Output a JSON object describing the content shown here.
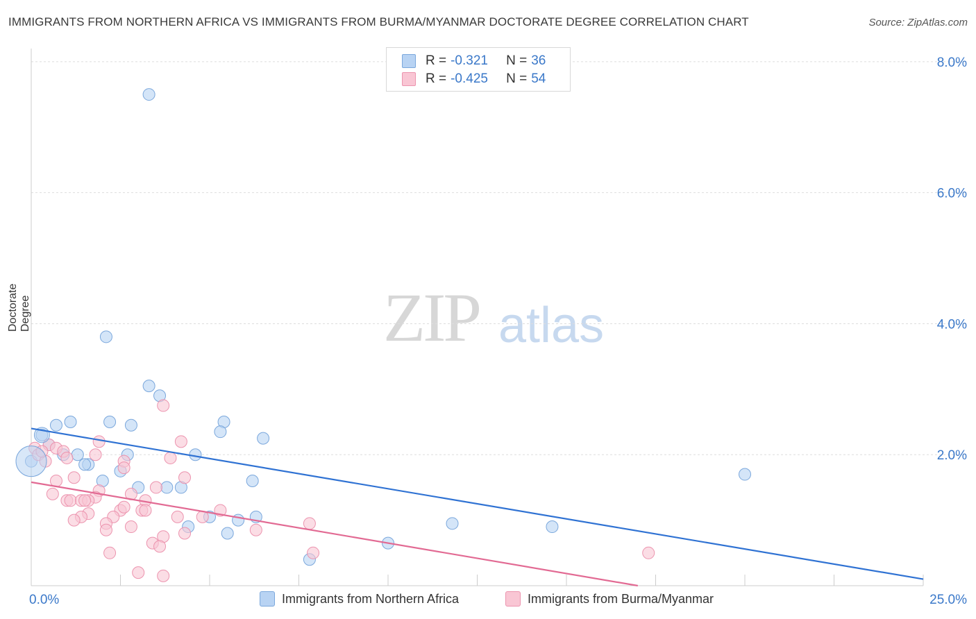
{
  "title": "IMMIGRANTS FROM NORTHERN AFRICA VS IMMIGRANTS FROM BURMA/MYANMAR DOCTORATE DEGREE CORRELATION CHART",
  "source": "Source: ZipAtlas.com",
  "watermark": {
    "zip": "ZIP",
    "atlas": "atlas"
  },
  "legend_top": {
    "rows": [
      {
        "r_label": "R =",
        "r_value": "-0.321",
        "n_label": "N =",
        "n_value": "36",
        "color": "#b8d3f3"
      },
      {
        "r_label": "R =",
        "r_value": "-0.425",
        "n_label": "N =",
        "n_value": "54",
        "color": "#f9c6d4"
      }
    ]
  },
  "chart_data": {
    "type": "scatter",
    "title": "IMMIGRANTS FROM NORTHERN AFRICA VS IMMIGRANTS FROM BURMA/MYANMAR DOCTORATE DEGREE CORRELATION CHART",
    "xlabel": "",
    "ylabel": "Doctorate Degree",
    "xlim": [
      0,
      25
    ],
    "ylim": [
      0,
      8.2
    ],
    "x_ticks": [
      0,
      25
    ],
    "x_tick_labels": [
      "0.0%",
      "25.0%"
    ],
    "y_ticks": [
      2,
      4,
      6,
      8
    ],
    "y_tick_labels": [
      "2.0%",
      "4.0%",
      "6.0%",
      "8.0%"
    ],
    "grid": true,
    "legend": "bottom",
    "series": [
      {
        "name": "Immigrants from Northern Africa",
        "color": "#b8d3f3",
        "stroke": "#7aa7dc",
        "line_color": "#2f72d3",
        "trend": [
          [
            0,
            2.4
          ],
          [
            25,
            0.1
          ]
        ],
        "points": [
          [
            3.3,
            7.5
          ],
          [
            2.1,
            3.8
          ],
          [
            3.3,
            3.05
          ],
          [
            3.6,
            2.9
          ],
          [
            1.1,
            2.5
          ],
          [
            2.2,
            2.5
          ],
          [
            5.4,
            2.5
          ],
          [
            0.7,
            2.45
          ],
          [
            2.8,
            2.45
          ],
          [
            5.3,
            2.35
          ],
          [
            6.5,
            2.25
          ],
          [
            0.3,
            2.3
          ],
          [
            0.5,
            2.15
          ],
          [
            0.9,
            2.0
          ],
          [
            1.3,
            2.0
          ],
          [
            2.7,
            2.0
          ],
          [
            4.6,
            2.0
          ],
          [
            1.6,
            1.85
          ],
          [
            1.5,
            1.85
          ],
          [
            2.5,
            1.75
          ],
          [
            0.0,
            1.9
          ],
          [
            2.0,
            1.6
          ],
          [
            6.2,
            1.6
          ],
          [
            3.0,
            1.5
          ],
          [
            3.8,
            1.5
          ],
          [
            4.2,
            1.5
          ],
          [
            20.0,
            1.7
          ],
          [
            5.0,
            1.05
          ],
          [
            5.8,
            1.0
          ],
          [
            6.3,
            1.05
          ],
          [
            4.4,
            0.9
          ],
          [
            11.8,
            0.95
          ],
          [
            14.6,
            0.9
          ],
          [
            5.5,
            0.8
          ],
          [
            10.0,
            0.65
          ],
          [
            7.8,
            0.4
          ]
        ]
      },
      {
        "name": "Immigrants from Burma/Myanmar",
        "color": "#f9c6d4",
        "stroke": "#ec93ae",
        "line_color": "#e26a93",
        "trend": [
          [
            0,
            1.58
          ],
          [
            17.0,
            0.0
          ]
        ],
        "points": [
          [
            0.1,
            2.1
          ],
          [
            0.5,
            2.15
          ],
          [
            0.7,
            2.1
          ],
          [
            0.2,
            2.0
          ],
          [
            0.4,
            1.9
          ],
          [
            0.9,
            2.05
          ],
          [
            3.7,
            2.75
          ],
          [
            1.9,
            2.2
          ],
          [
            4.2,
            2.2
          ],
          [
            1.8,
            2.0
          ],
          [
            3.9,
            1.95
          ],
          [
            2.6,
            1.9
          ],
          [
            2.6,
            1.8
          ],
          [
            0.7,
            1.6
          ],
          [
            1.2,
            1.65
          ],
          [
            4.3,
            1.65
          ],
          [
            3.5,
            1.5
          ],
          [
            1.9,
            1.45
          ],
          [
            0.6,
            1.4
          ],
          [
            2.8,
            1.4
          ],
          [
            1.8,
            1.35
          ],
          [
            1.0,
            1.3
          ],
          [
            1.1,
            1.3
          ],
          [
            1.4,
            1.3
          ],
          [
            1.6,
            1.3
          ],
          [
            3.2,
            1.3
          ],
          [
            2.5,
            1.15
          ],
          [
            3.1,
            1.15
          ],
          [
            3.2,
            1.15
          ],
          [
            5.3,
            1.15
          ],
          [
            1.6,
            1.1
          ],
          [
            2.3,
            1.05
          ],
          [
            1.4,
            1.05
          ],
          [
            4.1,
            1.05
          ],
          [
            4.8,
            1.05
          ],
          [
            1.2,
            1.0
          ],
          [
            2.1,
            0.95
          ],
          [
            7.8,
            0.95
          ],
          [
            2.8,
            0.9
          ],
          [
            2.1,
            0.85
          ],
          [
            6.3,
            0.85
          ],
          [
            3.7,
            0.75
          ],
          [
            4.3,
            0.8
          ],
          [
            3.4,
            0.65
          ],
          [
            3.6,
            0.6
          ],
          [
            2.2,
            0.5
          ],
          [
            7.9,
            0.5
          ],
          [
            17.3,
            0.5
          ],
          [
            3.0,
            0.2
          ],
          [
            3.7,
            0.15
          ],
          [
            1.5,
            1.3
          ],
          [
            2.6,
            1.2
          ],
          [
            0.3,
            2.05
          ],
          [
            1.0,
            1.95
          ]
        ]
      }
    ]
  }
}
